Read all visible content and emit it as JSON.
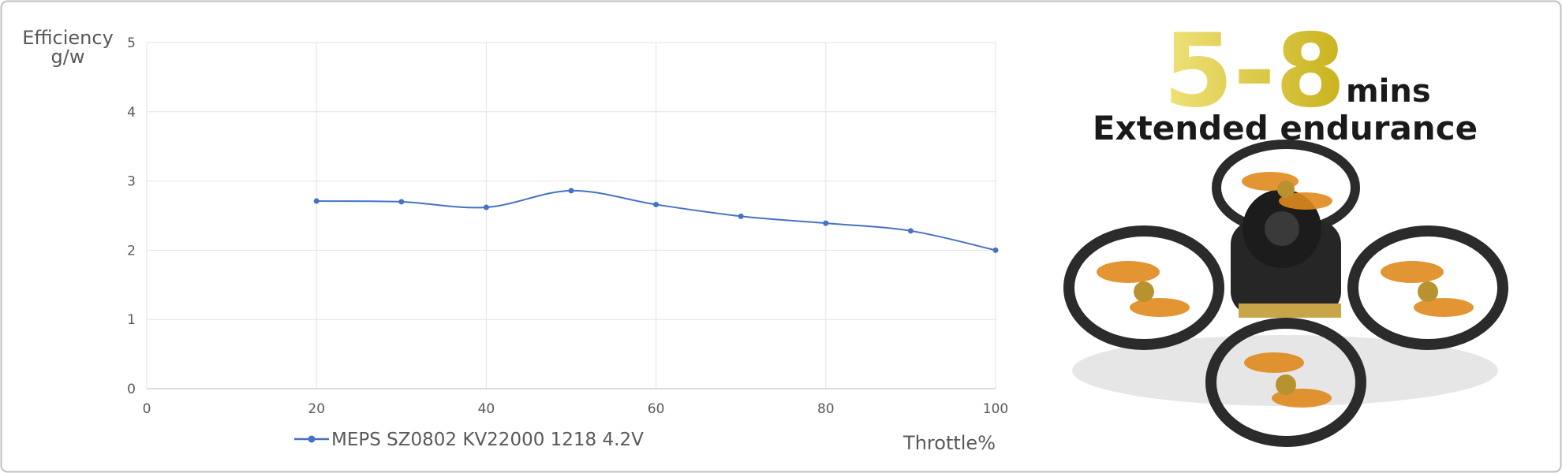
{
  "chart_data": {
    "type": "line",
    "ylabel": [
      "Efficiency",
      "g/w"
    ],
    "xlabel": "Throttle%",
    "x": [
      20,
      30,
      40,
      50,
      60,
      70,
      80,
      90,
      100
    ],
    "series": [
      {
        "name": "MEPS SZ0802 KV22000 1218 4.2V",
        "color": "#4472c4",
        "values": [
          2.71,
          2.7,
          2.62,
          2.86,
          2.66,
          2.49,
          2.39,
          2.28,
          2.0
        ]
      }
    ],
    "xlim": [
      0,
      100
    ],
    "xticks": [
      0,
      20,
      40,
      60,
      80,
      100
    ],
    "ylim": [
      0,
      5
    ],
    "yticks": [
      0,
      1,
      2,
      3,
      4,
      5
    ],
    "grid": true
  },
  "promo": {
    "headline": "5-8",
    "unit": "mins",
    "subtitle": "Extended endurance"
  }
}
